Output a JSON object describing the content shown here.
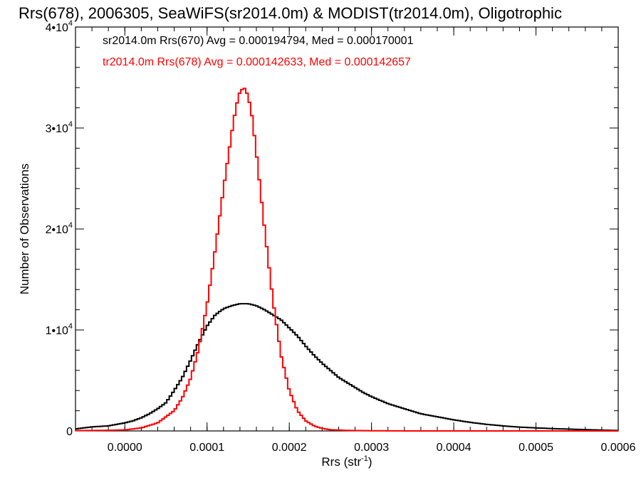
{
  "chart_data": {
    "type": "line",
    "title": "Rrs(678), 2006305, SeaWiFS(sr2014.0m) & MODIST(tr2014.0m), Oligotrophic",
    "xlabel": "Rrs (str",
    "xlabel_sup": "-1",
    "xlabel_end": ")",
    "ylabel": "Number of Observations",
    "xlim": [
      -6e-05,
      0.0006
    ],
    "ylim": [
      0,
      40000
    ],
    "x_ticks": [
      {
        "value": 0.0,
        "label": "0.0000"
      },
      {
        "value": 0.0001,
        "label": "0.0001"
      },
      {
        "value": 0.0002,
        "label": "0.0002"
      },
      {
        "value": 0.0003,
        "label": "0.0003"
      },
      {
        "value": 0.0004,
        "label": "0.0004"
      },
      {
        "value": 0.0005,
        "label": "0.0005"
      },
      {
        "value": 0.0006,
        "label": "0.0006"
      }
    ],
    "y_ticks": [
      {
        "value": 0,
        "mant": "0",
        "exp": ""
      },
      {
        "value": 10000,
        "mant": "1•10",
        "exp": "4"
      },
      {
        "value": 20000,
        "mant": "2•10",
        "exp": "4"
      },
      {
        "value": 30000,
        "mant": "3•10",
        "exp": "4"
      },
      {
        "value": 40000,
        "mant": "4•10",
        "exp": "4"
      }
    ],
    "series": [
      {
        "name": "sr2014.0m Rrs(670) Avg = 0.000194794, Med = 0.000170001",
        "color": "#000000",
        "x": [
          -6e-05,
          -4e-05,
          -2e-05,
          0.0,
          1e-05,
          2e-05,
          3e-05,
          4e-05,
          5e-05,
          6e-05,
          7e-05,
          8e-05,
          9e-05,
          0.0001,
          0.00011,
          0.00012,
          0.00013,
          0.00014,
          0.00015,
          0.00016,
          0.00017,
          0.00018,
          0.00019,
          0.0002,
          0.00021,
          0.00022,
          0.00023,
          0.00024,
          0.00025,
          0.00026,
          0.00027,
          0.00028,
          0.00029,
          0.0003,
          0.00032,
          0.00034,
          0.00036,
          0.00038,
          0.0004,
          0.00042,
          0.00044,
          0.00046,
          0.00048,
          0.0005,
          0.00052,
          0.00054,
          0.00056,
          0.00058,
          0.0006
        ],
        "y": [
          200,
          400,
          500,
          800,
          1000,
          1300,
          1700,
          2200,
          2800,
          4000,
          5300,
          7000,
          8800,
          10400,
          11500,
          12100,
          12400,
          12600,
          12600,
          12400,
          12000,
          11500,
          11000,
          10200,
          9400,
          8400,
          7500,
          6700,
          6000,
          5300,
          4800,
          4300,
          3800,
          3400,
          2700,
          2200,
          1700,
          1400,
          1100,
          850,
          650,
          500,
          380,
          300,
          230,
          180,
          130,
          80,
          40
        ]
      },
      {
        "name": "tr2014.0m Rrs(678) Avg = 0.000142633, Med = 0.000142657",
        "color": "#ff0000",
        "x": [
          -6e-05,
          -2e-05,
          0.0,
          2e-05,
          4e-05,
          6e-05,
          7e-05,
          8e-05,
          9e-05,
          0.0001,
          0.00011,
          0.00012,
          0.00013,
          0.000135,
          0.00014,
          0.000145,
          0.00015,
          0.000155,
          0.00016,
          0.00017,
          0.00018,
          0.00019,
          0.0002,
          0.00021,
          0.00022,
          0.00023,
          0.00024,
          0.00025,
          0.00027,
          0.0003,
          0.00035,
          0.0004,
          0.0006
        ],
        "y": [
          30,
          60,
          100,
          300,
          800,
          2000,
          3300,
          5200,
          8200,
          12500,
          18000,
          24000,
          29500,
          32000,
          33600,
          34000,
          33200,
          31000,
          27500,
          20000,
          13000,
          7500,
          4000,
          2000,
          1000,
          500,
          250,
          120,
          50,
          20,
          0,
          0,
          0
        ]
      }
    ]
  }
}
